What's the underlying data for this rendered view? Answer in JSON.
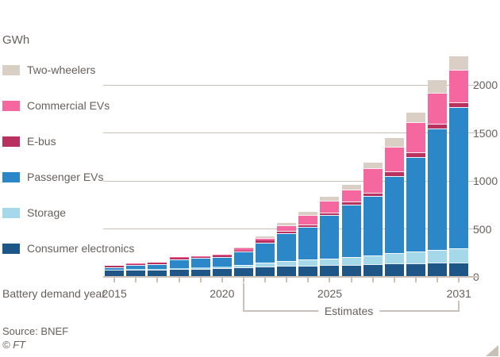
{
  "chart": {
    "unit_label": "GWh",
    "x_axis_label": "Battery demand year",
    "axis_color": "#ccc1b7",
    "text_color": "#66605c"
  },
  "legend": [
    {
      "label": "Two-wheelers",
      "color": "#d9cfc5"
    },
    {
      "label": "Commercial EVs",
      "color": "#f4679f"
    },
    {
      "label": "E-bus",
      "color": "#b8315f"
    },
    {
      "label": "Passenger EVs",
      "color": "#2b87c8"
    },
    {
      "label": "Storage",
      "color": "#a5d8e9"
    },
    {
      "label": "Consumer electronics",
      "color": "#1f5688"
    }
  ],
  "chart_data": {
    "type": "bar",
    "stacked": true,
    "title": "",
    "ylabel": "GWh",
    "xlabel": "Battery demand year",
    "ylim": [
      0,
      2400
    ],
    "yticks": [
      0,
      500,
      1000,
      1500,
      2000
    ],
    "grid": true,
    "legend_position": "left",
    "categories": [
      "2015",
      "2016",
      "2017",
      "2018",
      "2019",
      "2020",
      "2021",
      "2022",
      "2023",
      "2024",
      "2025",
      "2026",
      "2027",
      "2028",
      "2029",
      "2030",
      "2031"
    ],
    "series": [
      {
        "name": "Consumer electronics",
        "color": "#1f5688",
        "values": [
          70,
          74,
          76,
          82,
          85,
          88,
          95,
          105,
          112,
          118,
          122,
          126,
          132,
          138,
          140,
          145,
          150
        ]
      },
      {
        "name": "Storage",
        "color": "#a5d8e9",
        "values": [
          4,
          5,
          7,
          10,
          14,
          18,
          28,
          42,
          52,
          62,
          72,
          82,
          95,
          112,
          126,
          138,
          145
        ]
      },
      {
        "name": "Passenger EVs",
        "color": "#2b87c8",
        "values": [
          28,
          42,
          50,
          92,
          96,
          103,
          140,
          212,
          292,
          341,
          450,
          545,
          615,
          805,
          982,
          1266,
          1480
        ]
      },
      {
        "name": "E-bus",
        "color": "#b8315f",
        "values": [
          10,
          11,
          12,
          13,
          13,
          13,
          14,
          18,
          24,
          27,
          29,
          31,
          38,
          45,
          48,
          45,
          42
        ]
      },
      {
        "name": "Commercial EVs",
        "color": "#f4679f",
        "values": [
          4,
          5,
          5,
          6,
          6,
          7,
          20,
          32,
          60,
          100,
          120,
          125,
          250,
          260,
          320,
          330,
          340
        ]
      },
      {
        "name": "Two-wheelers",
        "color": "#d9cfc5",
        "values": [
          2,
          3,
          3,
          4,
          4,
          4,
          8,
          16,
          25,
          30,
          39,
          49,
          63,
          88,
          98,
          126,
          143
        ]
      }
    ],
    "x_tick_labels": [
      {
        "label": "2015",
        "index": 0
      },
      {
        "label": "2020",
        "index": 5
      },
      {
        "label": "2025",
        "index": 10
      },
      {
        "label": "2031",
        "index": 16
      }
    ],
    "estimates": {
      "label": "Estimates",
      "from_index": 6,
      "to_index": 16
    }
  },
  "footer": {
    "source": "Source: BNEF",
    "copyright": "© FT"
  }
}
